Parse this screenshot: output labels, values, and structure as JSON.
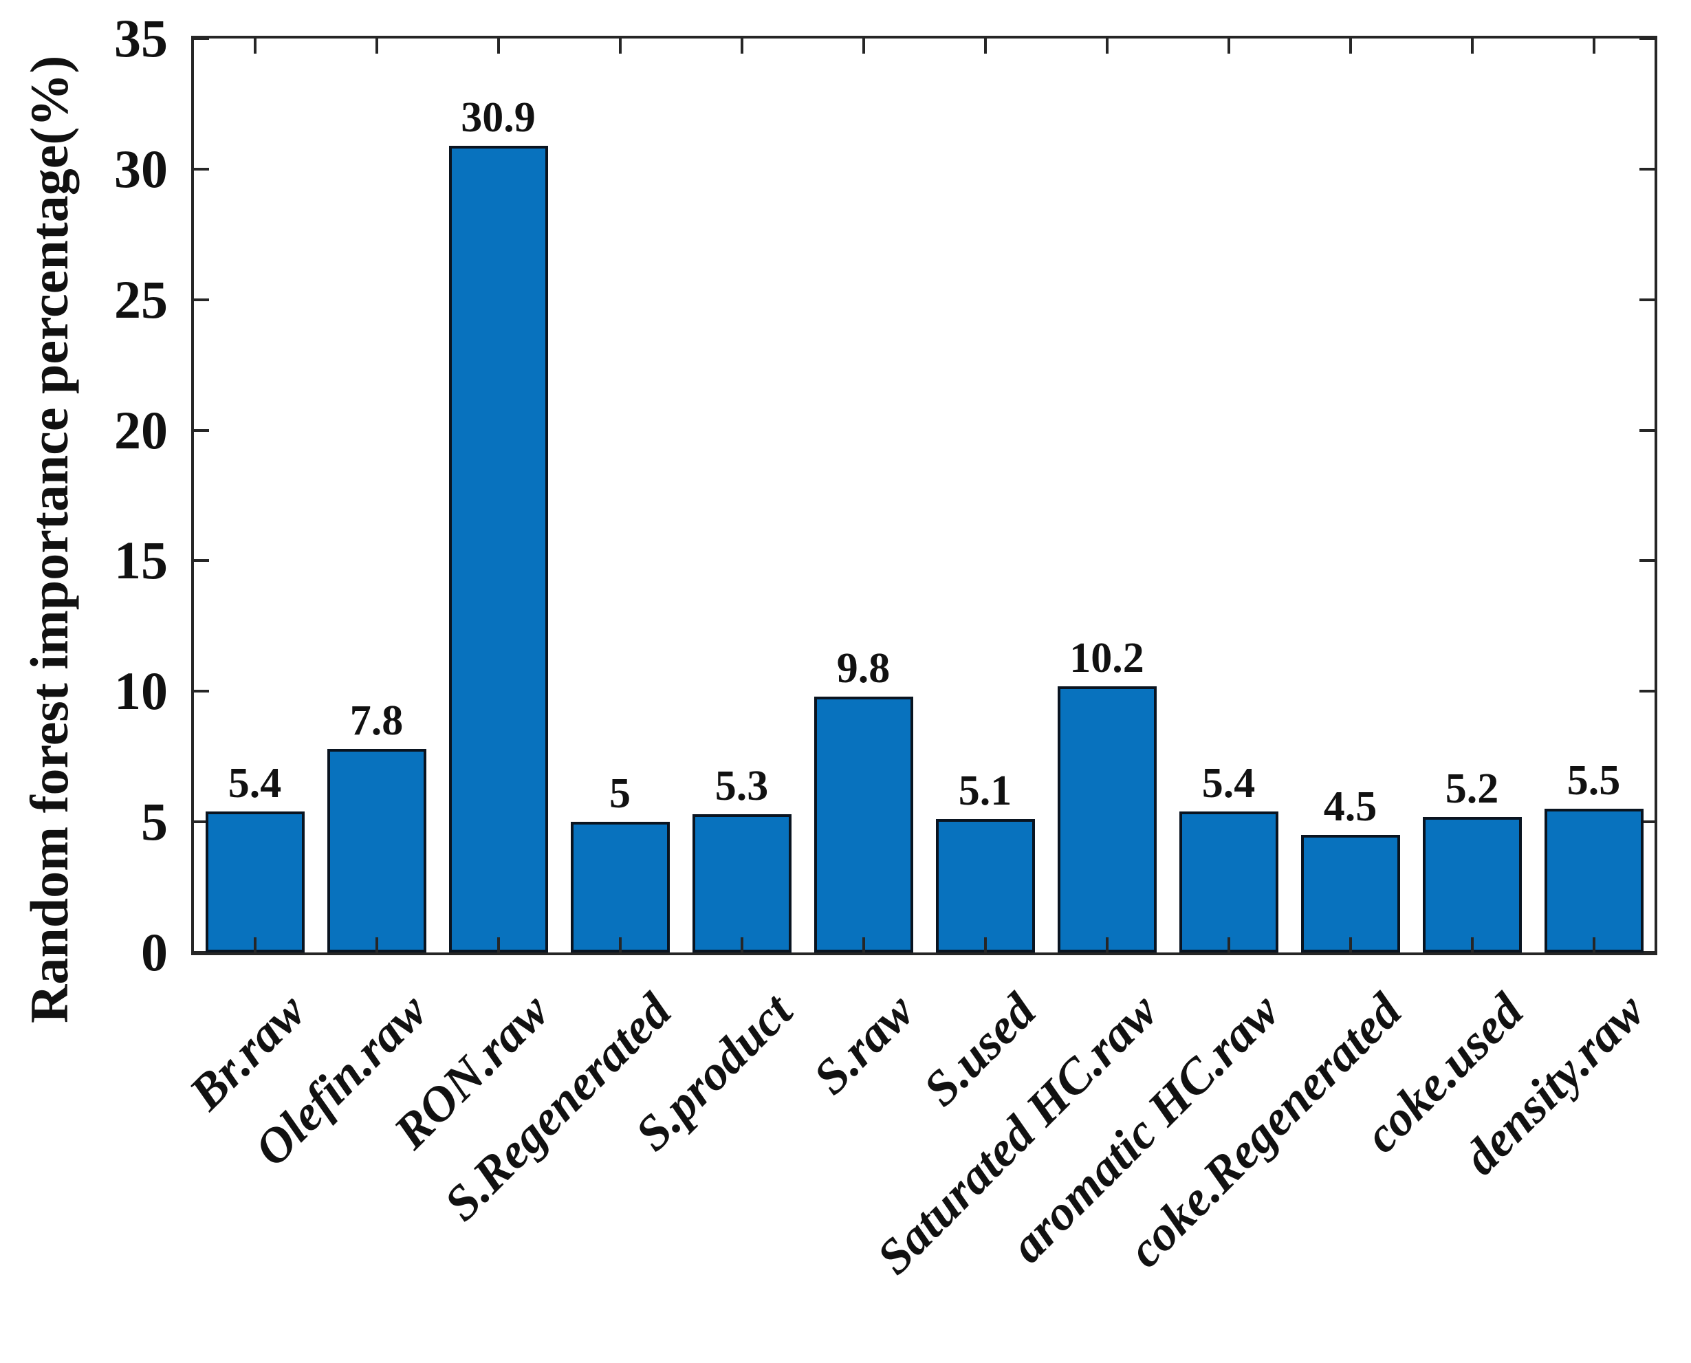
{
  "chart_data": {
    "type": "bar",
    "title": "",
    "ylabel": "Random forest importance percentage(%)",
    "xlabel": "",
    "categories": [
      "Br.raw",
      "Olefin.raw",
      "RON.raw",
      "S.Regenerated",
      "S.product",
      "S.raw",
      "S.used",
      "Saturated HC.raw",
      "aromatic HC.raw",
      "coke.Regenerated",
      "coke.used",
      "density.raw"
    ],
    "values": [
      5.4,
      7.8,
      30.9,
      5,
      5.3,
      9.8,
      5.1,
      10.2,
      5.4,
      4.5,
      5.2,
      5.5
    ],
    "value_labels": [
      "5.4",
      "7.8",
      "30.9",
      "5",
      "5.3",
      "9.8",
      "5.1",
      "10.2",
      "5.4",
      "4.5",
      "5.2",
      "5.5"
    ],
    "yticks": [
      0,
      5,
      10,
      15,
      20,
      25,
      30,
      35
    ],
    "ylim": [
      0,
      35
    ],
    "grid": false,
    "legend": null,
    "bar_color": "#0872BE",
    "bar_edge_color": "#0a1420",
    "axis_color": "#262626",
    "text_color": "#111111",
    "x_label_rotation_deg": 45
  }
}
